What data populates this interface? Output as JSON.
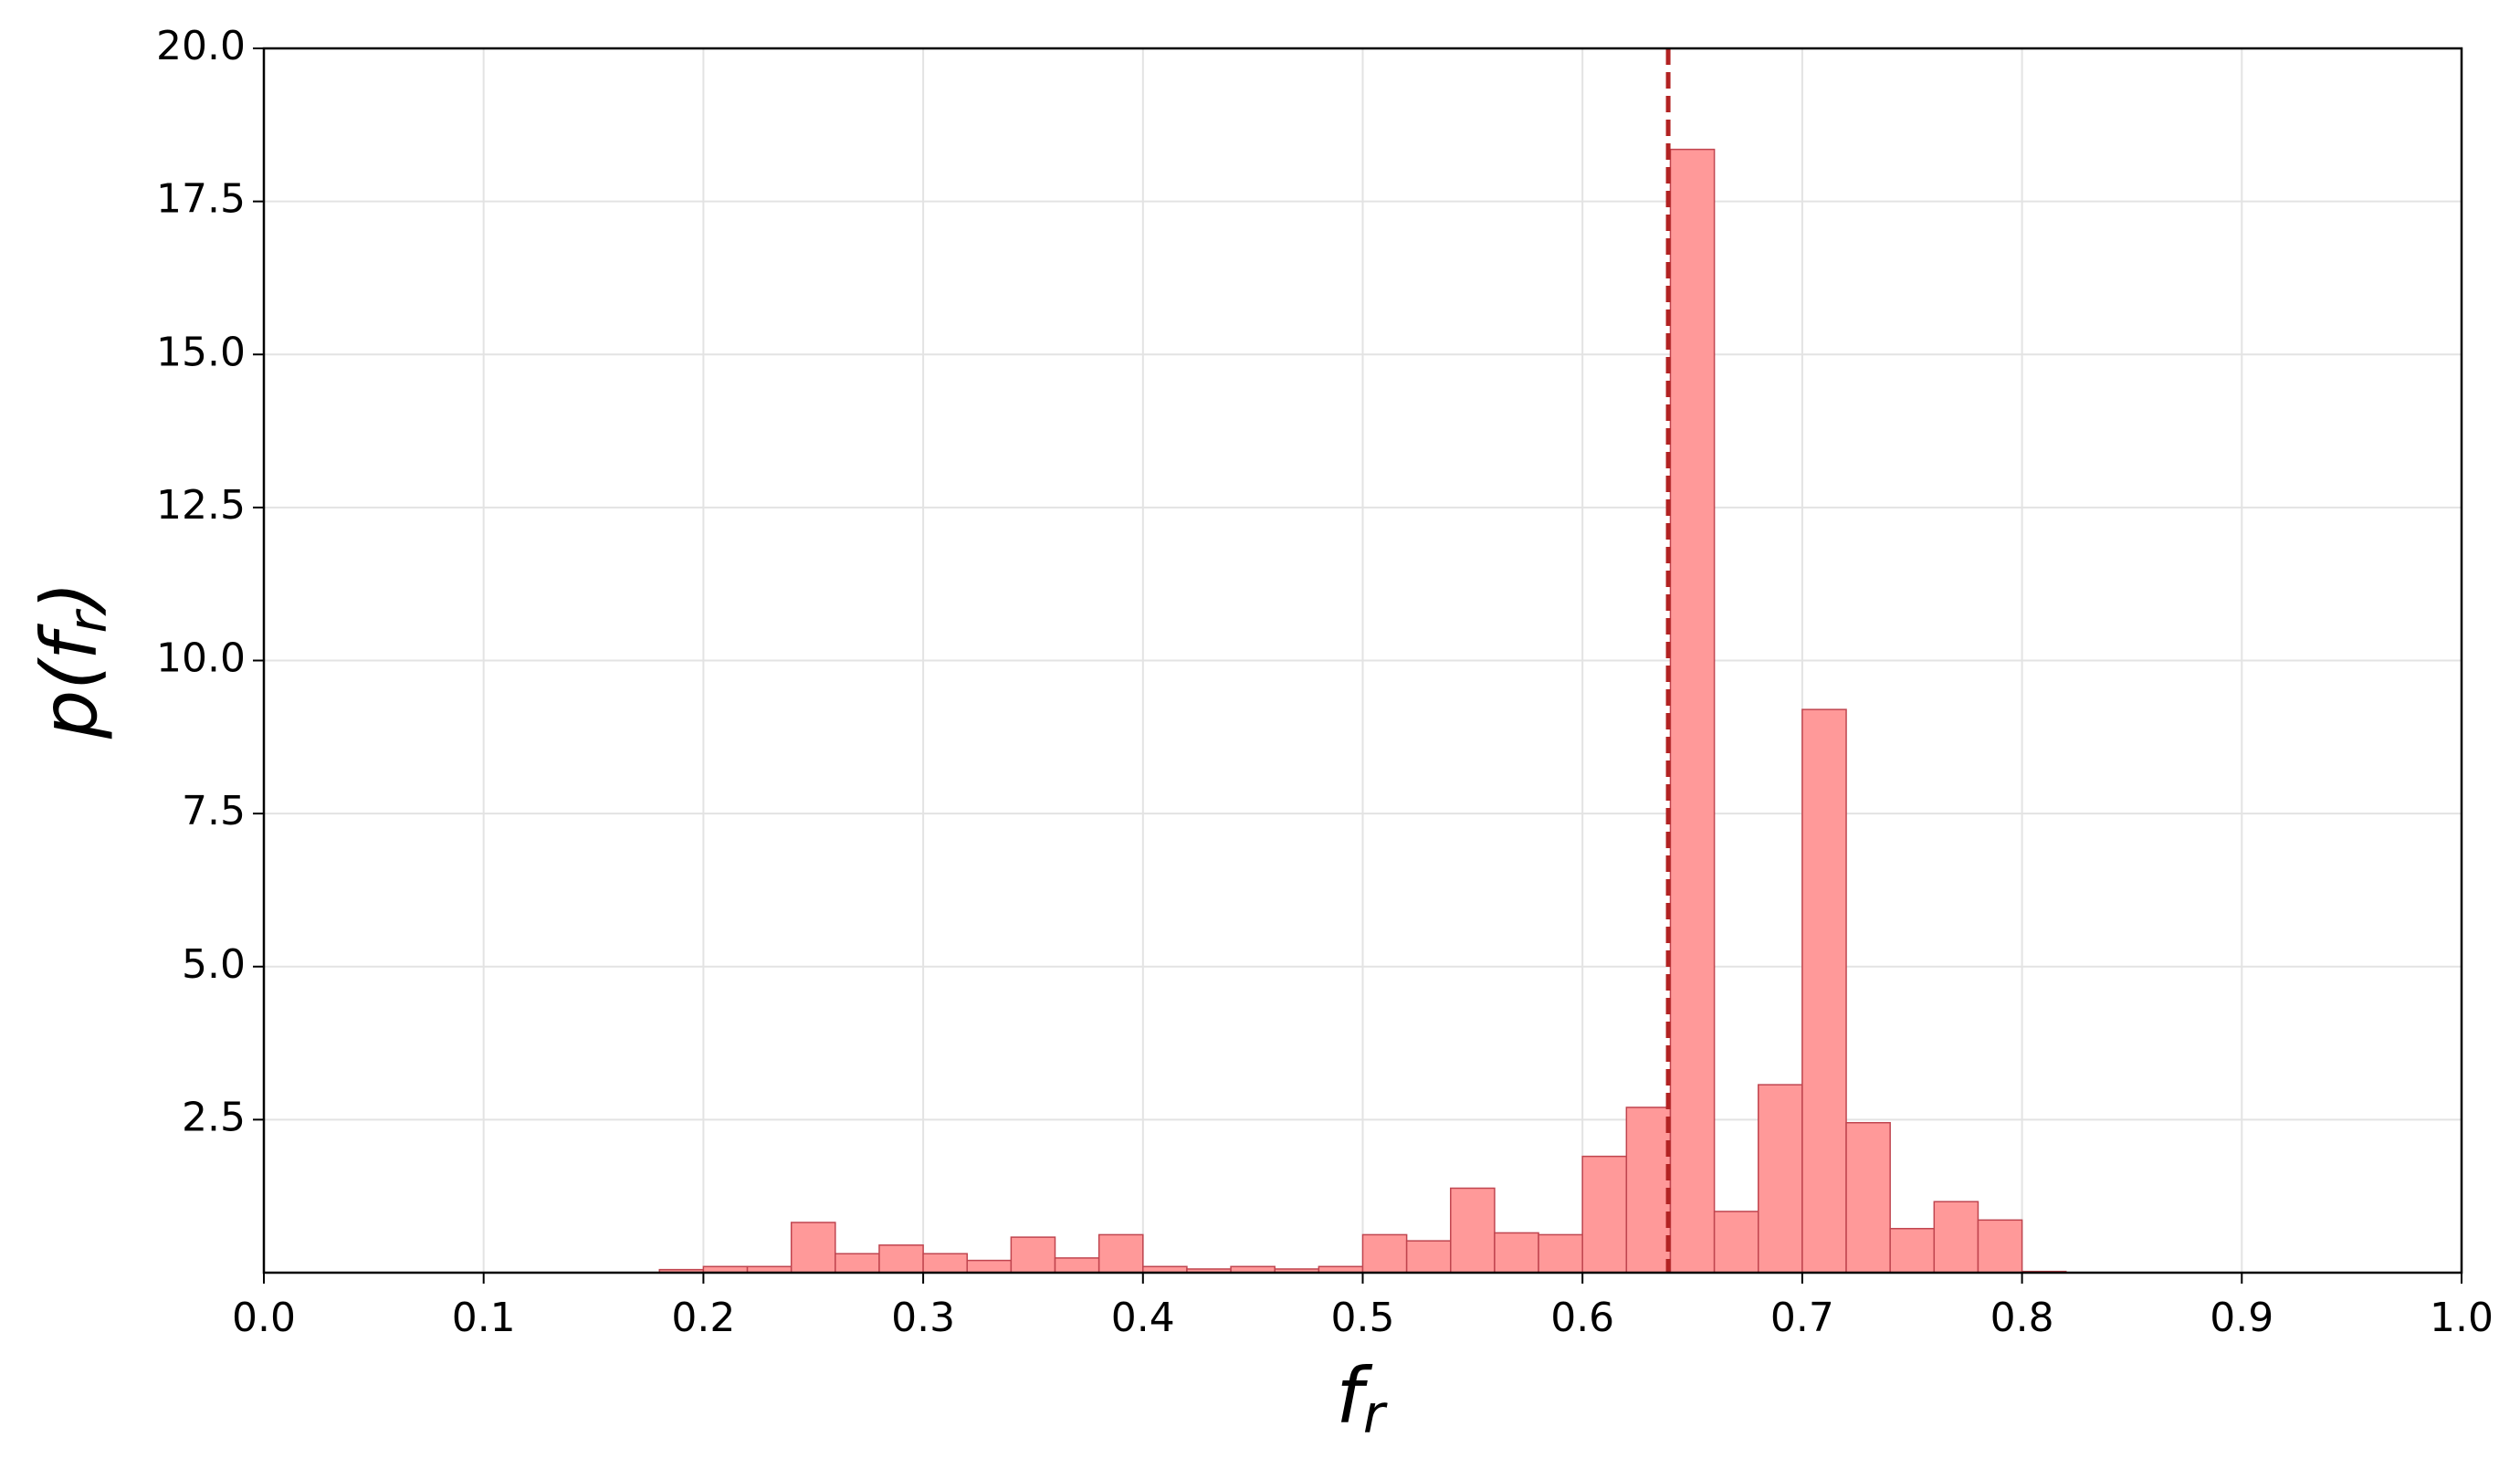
{
  "chart_data": {
    "type": "histogram",
    "xlabel": [
      "f",
      "r"
    ],
    "ylabel": [
      "p(f",
      "r",
      ")"
    ],
    "bins": [
      0.18,
      0.2,
      0.22,
      0.24,
      0.26,
      0.28,
      0.3,
      0.32,
      0.34,
      0.36,
      0.38,
      0.4,
      0.42,
      0.44,
      0.46,
      0.48,
      0.5,
      0.52,
      0.54,
      0.56,
      0.58,
      0.6,
      0.62,
      0.64,
      0.66,
      0.68,
      0.7,
      0.72,
      0.74,
      0.76,
      0.78,
      0.8,
      0.82
    ],
    "values": [
      0.05,
      0.1,
      0.1,
      0.82,
      0.31,
      0.45,
      0.31,
      0.2,
      0.58,
      0.24,
      0.62,
      0.1,
      0.06,
      0.1,
      0.06,
      0.1,
      0.62,
      0.52,
      1.38,
      0.65,
      0.62,
      1.9,
      2.7,
      18.35,
      1.0,
      3.07,
      9.2,
      2.45,
      0.72,
      1.16,
      0.86,
      0.02
    ],
    "color": "#ff9999",
    "edgecolor": "#c0454f",
    "vline": 0.639,
    "vline_color": "#b22222",
    "xlim": [
      0,
      1
    ],
    "xticks": [
      {
        "value": 0,
        "label": "0.0"
      },
      0.1,
      0.2,
      0.3,
      0.4,
      0.5,
      0.6,
      0.7,
      0.8,
      0.9,
      {
        "value": 1,
        "label": "1.0"
      }
    ],
    "ylim": [
      0,
      20
    ],
    "yticks": [
      2.5,
      {
        "value": 5,
        "label": "5.0"
      },
      7.5,
      {
        "value": 10,
        "label": "10.0"
      },
      12.5,
      {
        "value": 15,
        "label": "15.0"
      },
      17.5,
      {
        "value": 20,
        "label": "20.0"
      }
    ],
    "grid": true
  }
}
